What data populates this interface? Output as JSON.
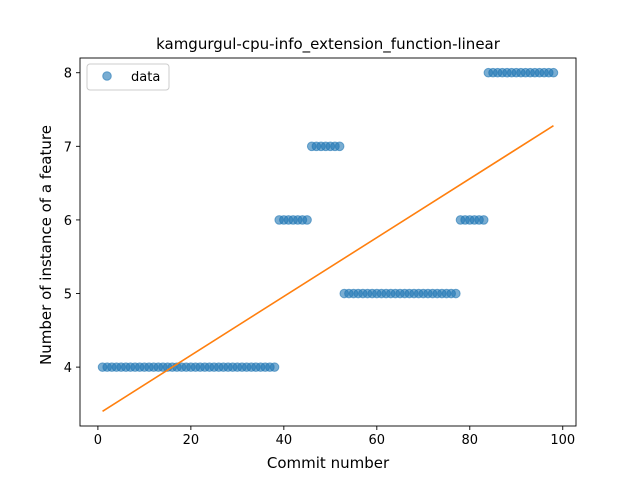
{
  "chart_data": {
    "type": "scatter",
    "title": "kamgurgul-cpu-info_extension_function-linear",
    "xlabel": "Commit number",
    "ylabel": "Number of instance of a feature",
    "xlim": [
      -3.85,
      102.85
    ],
    "ylim": [
      3.2,
      8.2
    ],
    "xticks": [
      0,
      20,
      40,
      60,
      80,
      100
    ],
    "yticks": [
      4,
      5,
      6,
      7,
      8
    ],
    "grid": false,
    "legend": {
      "position": "top-left",
      "entries": [
        "data"
      ]
    },
    "colors": {
      "data": "#1f77b4",
      "fit": "#ff7f0e"
    },
    "series": [
      {
        "name": "data",
        "kind": "scatter",
        "points": [
          [
            1,
            4
          ],
          [
            2,
            4
          ],
          [
            3,
            4
          ],
          [
            4,
            4
          ],
          [
            5,
            4
          ],
          [
            6,
            4
          ],
          [
            7,
            4
          ],
          [
            8,
            4
          ],
          [
            9,
            4
          ],
          [
            10,
            4
          ],
          [
            11,
            4
          ],
          [
            12,
            4
          ],
          [
            13,
            4
          ],
          [
            14,
            4
          ],
          [
            15,
            4
          ],
          [
            16,
            4
          ],
          [
            17,
            4
          ],
          [
            18,
            4
          ],
          [
            19,
            4
          ],
          [
            20,
            4
          ],
          [
            21,
            4
          ],
          [
            22,
            4
          ],
          [
            23,
            4
          ],
          [
            24,
            4
          ],
          [
            25,
            4
          ],
          [
            26,
            4
          ],
          [
            27,
            4
          ],
          [
            28,
            4
          ],
          [
            29,
            4
          ],
          [
            30,
            4
          ],
          [
            31,
            4
          ],
          [
            32,
            4
          ],
          [
            33,
            4
          ],
          [
            34,
            4
          ],
          [
            35,
            4
          ],
          [
            36,
            4
          ],
          [
            37,
            4
          ],
          [
            38,
            4
          ],
          [
            39,
            6
          ],
          [
            40,
            6
          ],
          [
            41,
            6
          ],
          [
            42,
            6
          ],
          [
            43,
            6
          ],
          [
            44,
            6
          ],
          [
            45,
            6
          ],
          [
            46,
            7
          ],
          [
            47,
            7
          ],
          [
            48,
            7
          ],
          [
            49,
            7
          ],
          [
            50,
            7
          ],
          [
            51,
            7
          ],
          [
            52,
            7
          ],
          [
            53,
            5
          ],
          [
            54,
            5
          ],
          [
            55,
            5
          ],
          [
            56,
            5
          ],
          [
            57,
            5
          ],
          [
            58,
            5
          ],
          [
            59,
            5
          ],
          [
            60,
            5
          ],
          [
            61,
            5
          ],
          [
            62,
            5
          ],
          [
            63,
            5
          ],
          [
            64,
            5
          ],
          [
            65,
            5
          ],
          [
            66,
            5
          ],
          [
            67,
            5
          ],
          [
            68,
            5
          ],
          [
            69,
            5
          ],
          [
            70,
            5
          ],
          [
            71,
            5
          ],
          [
            72,
            5
          ],
          [
            73,
            5
          ],
          [
            74,
            5
          ],
          [
            75,
            5
          ],
          [
            76,
            5
          ],
          [
            77,
            5
          ],
          [
            78,
            6
          ],
          [
            79,
            6
          ],
          [
            80,
            6
          ],
          [
            81,
            6
          ],
          [
            82,
            6
          ],
          [
            83,
            6
          ],
          [
            84,
            8
          ],
          [
            85,
            8
          ],
          [
            86,
            8
          ],
          [
            87,
            8
          ],
          [
            88,
            8
          ],
          [
            89,
            8
          ],
          [
            90,
            8
          ],
          [
            91,
            8
          ],
          [
            92,
            8
          ],
          [
            93,
            8
          ],
          [
            94,
            8
          ],
          [
            95,
            8
          ],
          [
            96,
            8
          ],
          [
            97,
            8
          ],
          [
            98,
            8
          ]
        ]
      },
      {
        "kind": "line",
        "points": [
          [
            1,
            3.4
          ],
          [
            98,
            7.28
          ]
        ]
      }
    ]
  }
}
